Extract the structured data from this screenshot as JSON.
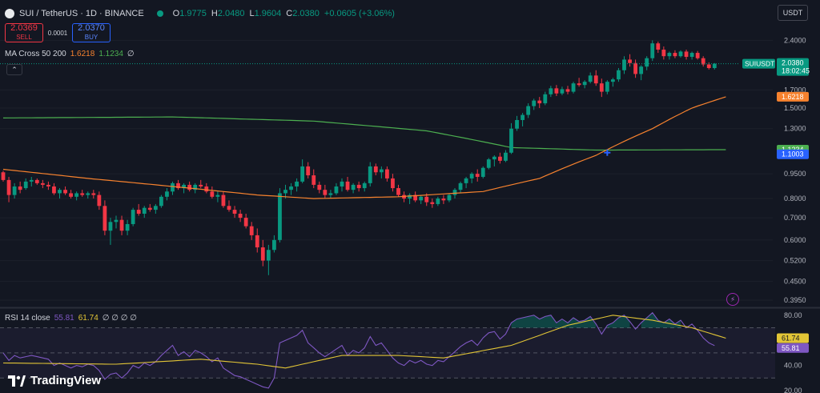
{
  "header": {
    "symbol_title": "SUI / TetherUS · 1D · BINANCE",
    "open_label": "O",
    "open": "1.9775",
    "high_label": "H",
    "high": "2.0480",
    "low_label": "L",
    "low": "1.9604",
    "close_label": "C",
    "close": "2.0380",
    "change": "+0.0605 (+3.06%)"
  },
  "trade": {
    "sell_price": "2.0369",
    "sell_label": "SELL",
    "spread": "0.0001",
    "buy_price": "2.0370",
    "buy_label": "BUY"
  },
  "ma_indicator": {
    "name": "MA Cross 50 200",
    "ma50": "1.6218",
    "ma200": "1.1234",
    "extra": "∅"
  },
  "rsi_indicator": {
    "name": "RSI 14 close",
    "rsi_value": "55.81",
    "rsi_ma": "61.74",
    "extra": "∅ ∅ ∅ ∅"
  },
  "currency_button": "USDT",
  "collapse_icon": "⌃",
  "alert_icon_glyph": "⚡",
  "logo_text": "TradingView",
  "price_scale": {
    "ticks": [
      "2.4000",
      "1.7000",
      "1.5000",
      "1.3000",
      "0.9500",
      "0.8000",
      "0.7000",
      "0.6000",
      "0.5200",
      "0.4500",
      "0.3950"
    ],
    "last_price_label": {
      "symbol": "SUIUSDT",
      "price": "2.0380",
      "countdown": "18:02:45"
    },
    "ma50_label": "1.6218",
    "ma200_label": "1.1234",
    "cross_label": "1.1003"
  },
  "rsi_scale": {
    "ticks": [
      "80.00",
      "40.00",
      "20.00"
    ],
    "rsi_ma_label": "61.74",
    "rsi_label": "55.81"
  },
  "colors": {
    "background": "#131722",
    "up": "#089981",
    "down": "#f23645",
    "ma50": "#f7822e",
    "ma200": "#4caf50",
    "rsi": "#7e57c2",
    "rsi_ma": "#e2c536",
    "cross": "#2962ff"
  },
  "chart_data": {
    "type": "candlestick",
    "symbol": "SUIUSDT",
    "interval": "1D",
    "exchange": "BINANCE",
    "y_scale": "log",
    "ylim": [
      0.38,
      2.6
    ],
    "candles": [
      [
        0.96,
        0.97,
        0.9,
        0.91
      ],
      [
        0.91,
        0.93,
        0.78,
        0.82
      ],
      [
        0.82,
        0.89,
        0.8,
        0.87
      ],
      [
        0.87,
        0.9,
        0.83,
        0.85
      ],
      [
        0.86,
        0.92,
        0.85,
        0.9
      ],
      [
        0.9,
        0.93,
        0.87,
        0.91
      ],
      [
        0.91,
        0.92,
        0.88,
        0.89
      ],
      [
        0.89,
        0.91,
        0.86,
        0.88
      ],
      [
        0.88,
        0.9,
        0.85,
        0.87
      ],
      [
        0.87,
        0.89,
        0.82,
        0.83
      ],
      [
        0.83,
        0.86,
        0.8,
        0.85
      ],
      [
        0.85,
        0.87,
        0.82,
        0.83
      ],
      [
        0.83,
        0.85,
        0.8,
        0.81
      ],
      [
        0.81,
        0.84,
        0.79,
        0.83
      ],
      [
        0.83,
        0.85,
        0.81,
        0.82
      ],
      [
        0.82,
        0.84,
        0.8,
        0.83
      ],
      [
        0.83,
        0.85,
        0.8,
        0.82
      ],
      [
        0.82,
        0.84,
        0.74,
        0.76
      ],
      [
        0.76,
        0.79,
        0.62,
        0.64
      ],
      [
        0.64,
        0.7,
        0.58,
        0.68
      ],
      [
        0.68,
        0.71,
        0.65,
        0.69
      ],
      [
        0.69,
        0.71,
        0.62,
        0.64
      ],
      [
        0.64,
        0.69,
        0.62,
        0.67
      ],
      [
        0.67,
        0.75,
        0.66,
        0.74
      ],
      [
        0.74,
        0.77,
        0.71,
        0.72
      ],
      [
        0.72,
        0.76,
        0.7,
        0.75
      ],
      [
        0.75,
        0.77,
        0.73,
        0.74
      ],
      [
        0.74,
        0.77,
        0.72,
        0.76
      ],
      [
        0.76,
        0.82,
        0.75,
        0.81
      ],
      [
        0.81,
        0.86,
        0.79,
        0.84
      ],
      [
        0.84,
        0.9,
        0.82,
        0.89
      ],
      [
        0.89,
        0.91,
        0.85,
        0.86
      ],
      [
        0.86,
        0.89,
        0.83,
        0.88
      ],
      [
        0.88,
        0.9,
        0.84,
        0.85
      ],
      [
        0.85,
        0.89,
        0.83,
        0.88
      ],
      [
        0.88,
        0.91,
        0.86,
        0.87
      ],
      [
        0.87,
        0.89,
        0.83,
        0.84
      ],
      [
        0.84,
        0.87,
        0.8,
        0.81
      ],
      [
        0.81,
        0.84,
        0.78,
        0.82
      ],
      [
        0.82,
        0.84,
        0.75,
        0.76
      ],
      [
        0.76,
        0.79,
        0.73,
        0.74
      ],
      [
        0.74,
        0.76,
        0.7,
        0.72
      ],
      [
        0.72,
        0.74,
        0.68,
        0.7
      ],
      [
        0.7,
        0.72,
        0.65,
        0.66
      ],
      [
        0.66,
        0.68,
        0.6,
        0.62
      ],
      [
        0.62,
        0.65,
        0.55,
        0.57
      ],
      [
        0.57,
        0.6,
        0.5,
        0.52
      ],
      [
        0.52,
        0.58,
        0.47,
        0.56
      ],
      [
        0.56,
        0.62,
        0.55,
        0.6
      ],
      [
        0.6,
        0.86,
        0.59,
        0.83
      ],
      [
        0.83,
        0.88,
        0.8,
        0.85
      ],
      [
        0.85,
        0.89,
        0.82,
        0.87
      ],
      [
        0.87,
        0.92,
        0.84,
        0.9
      ],
      [
        0.9,
        1.05,
        0.89,
        1.0
      ],
      [
        1.0,
        1.03,
        0.92,
        0.94
      ],
      [
        0.94,
        0.98,
        0.86,
        0.88
      ],
      [
        0.88,
        0.9,
        0.83,
        0.85
      ],
      [
        0.85,
        0.88,
        0.8,
        0.82
      ],
      [
        0.82,
        0.85,
        0.8,
        0.83
      ],
      [
        0.83,
        0.89,
        0.82,
        0.87
      ],
      [
        0.87,
        0.92,
        0.84,
        0.9
      ],
      [
        0.9,
        0.93,
        0.84,
        0.85
      ],
      [
        0.85,
        0.89,
        0.83,
        0.88
      ],
      [
        0.88,
        0.9,
        0.84,
        0.86
      ],
      [
        0.86,
        0.9,
        0.84,
        0.89
      ],
      [
        0.89,
        1.03,
        0.87,
        1.0
      ],
      [
        1.0,
        1.02,
        0.94,
        0.96
      ],
      [
        0.96,
        1.0,
        0.92,
        0.98
      ],
      [
        0.98,
        1.0,
        0.9,
        0.92
      ],
      [
        0.92,
        0.95,
        0.84,
        0.86
      ],
      [
        0.86,
        0.88,
        0.81,
        0.82
      ],
      [
        0.82,
        0.84,
        0.78,
        0.8
      ],
      [
        0.8,
        0.83,
        0.77,
        0.82
      ],
      [
        0.82,
        0.84,
        0.78,
        0.79
      ],
      [
        0.79,
        0.82,
        0.77,
        0.81
      ],
      [
        0.81,
        0.83,
        0.76,
        0.78
      ],
      [
        0.78,
        0.8,
        0.75,
        0.77
      ],
      [
        0.77,
        0.81,
        0.76,
        0.8
      ],
      [
        0.8,
        0.82,
        0.77,
        0.79
      ],
      [
        0.79,
        0.83,
        0.78,
        0.82
      ],
      [
        0.82,
        0.86,
        0.8,
        0.85
      ],
      [
        0.85,
        0.9,
        0.83,
        0.89
      ],
      [
        0.89,
        0.93,
        0.86,
        0.92
      ],
      [
        0.92,
        0.96,
        0.89,
        0.95
      ],
      [
        0.95,
        0.98,
        0.9,
        0.93
      ],
      [
        0.93,
        1.0,
        0.92,
        0.99
      ],
      [
        0.99,
        1.06,
        0.98,
        1.05
      ],
      [
        1.05,
        1.08,
        1.0,
        1.07
      ],
      [
        1.07,
        1.1,
        1.02,
        1.04
      ],
      [
        1.04,
        1.12,
        1.03,
        1.1
      ],
      [
        1.1,
        1.35,
        1.09,
        1.3
      ],
      [
        1.3,
        1.42,
        1.28,
        1.38
      ],
      [
        1.38,
        1.45,
        1.32,
        1.43
      ],
      [
        1.43,
        1.55,
        1.4,
        1.52
      ],
      [
        1.52,
        1.6,
        1.48,
        1.58
      ],
      [
        1.58,
        1.62,
        1.5,
        1.55
      ],
      [
        1.55,
        1.68,
        1.53,
        1.65
      ],
      [
        1.65,
        1.75,
        1.62,
        1.72
      ],
      [
        1.72,
        1.76,
        1.63,
        1.66
      ],
      [
        1.66,
        1.74,
        1.64,
        1.71
      ],
      [
        1.71,
        1.75,
        1.65,
        1.68
      ],
      [
        1.68,
        1.8,
        1.66,
        1.78
      ],
      [
        1.78,
        1.85,
        1.74,
        1.76
      ],
      [
        1.76,
        1.82,
        1.72,
        1.8
      ],
      [
        1.8,
        1.92,
        1.78,
        1.88
      ],
      [
        1.88,
        1.95,
        1.75,
        1.78
      ],
      [
        1.78,
        1.84,
        1.62,
        1.68
      ],
      [
        1.68,
        1.82,
        1.65,
        1.8
      ],
      [
        1.8,
        1.85,
        1.74,
        1.83
      ],
      [
        1.83,
        1.98,
        1.8,
        1.95
      ],
      [
        1.95,
        2.15,
        1.9,
        2.1
      ],
      [
        2.1,
        2.18,
        2.0,
        2.05
      ],
      [
        2.05,
        2.1,
        1.85,
        1.9
      ],
      [
        1.9,
        2.02,
        1.82,
        2.0
      ],
      [
        2.0,
        2.15,
        1.95,
        2.12
      ],
      [
        2.12,
        2.4,
        2.08,
        2.35
      ],
      [
        2.35,
        2.38,
        2.2,
        2.25
      ],
      [
        2.25,
        2.3,
        2.1,
        2.15
      ],
      [
        2.15,
        2.22,
        2.1,
        2.2
      ],
      [
        2.2,
        2.24,
        2.12,
        2.15
      ],
      [
        2.15,
        2.24,
        2.13,
        2.22
      ],
      [
        2.22,
        2.25,
        2.1,
        2.14
      ],
      [
        2.14,
        2.22,
        2.1,
        2.2
      ],
      [
        2.2,
        2.23,
        2.1,
        2.12
      ],
      [
        2.12,
        2.15,
        2.0,
        2.03
      ],
      [
        2.03,
        2.06,
        1.96,
        1.98
      ],
      [
        1.98,
        2.05,
        1.96,
        2.04
      ]
    ],
    "ma50": {
      "name": "MA 50",
      "last_value": 1.6218,
      "points": [
        [
          0,
          0.98
        ],
        [
          15,
          0.92
        ],
        [
          30,
          0.87
        ],
        [
          45,
          0.82
        ],
        [
          55,
          0.8
        ],
        [
          70,
          0.81
        ],
        [
          85,
          0.84
        ],
        [
          95,
          0.92
        ],
        [
          105,
          1.08
        ],
        [
          115,
          1.3
        ],
        [
          122,
          1.5
        ],
        [
          128,
          1.6218
        ]
      ]
    },
    "ma200": {
      "name": "MA 200",
      "last_value": 1.1234,
      "points": [
        [
          0,
          1.4
        ],
        [
          30,
          1.41
        ],
        [
          55,
          1.37
        ],
        [
          75,
          1.28
        ],
        [
          90,
          1.14
        ],
        [
          105,
          1.12
        ],
        [
          128,
          1.1234
        ]
      ]
    },
    "cross_marker": {
      "value": 1.1003
    },
    "rsi": {
      "name": "RSI 14",
      "ylim": [
        20,
        85
      ],
      "upper_band": 70,
      "lower_band": 30,
      "ticks": [
        80,
        40,
        20
      ],
      "values": [
        50,
        44,
        48,
        46,
        47,
        48,
        47,
        46,
        45,
        40,
        42,
        40,
        38,
        40,
        39,
        41,
        40,
        36,
        29,
        33,
        34,
        30,
        34,
        40,
        38,
        42,
        40,
        43,
        48,
        52,
        56,
        48,
        51,
        47,
        52,
        50,
        47,
        43,
        46,
        38,
        35,
        32,
        31,
        29,
        27,
        25,
        23,
        22,
        30,
        58,
        60,
        62,
        64,
        68,
        58,
        54,
        50,
        47,
        50,
        53,
        56,
        48,
        52,
        50,
        54,
        63,
        56,
        58,
        52,
        46,
        42,
        40,
        44,
        42,
        44,
        41,
        40,
        44,
        43,
        47,
        51,
        55,
        58,
        60,
        56,
        62,
        66,
        67,
        61,
        65,
        74,
        77,
        78,
        79,
        80,
        77,
        79,
        80,
        74,
        77,
        74,
        78,
        75,
        76,
        79,
        73,
        65,
        72,
        74,
        78,
        80,
        75,
        69,
        74,
        78,
        82,
        76,
        74,
        77,
        73,
        76,
        70,
        73,
        68,
        62,
        58,
        55.81
      ],
      "ma": {
        "name": "RSI MA",
        "last_value": 61.74,
        "points": [
          [
            0,
            42
          ],
          [
            20,
            41
          ],
          [
            35,
            45
          ],
          [
            45,
            41
          ],
          [
            50,
            38
          ],
          [
            60,
            48
          ],
          [
            70,
            48
          ],
          [
            78,
            46
          ],
          [
            90,
            56
          ],
          [
            100,
            72
          ],
          [
            108,
            80
          ],
          [
            115,
            76
          ],
          [
            122,
            70
          ],
          [
            128,
            61.74
          ]
        ]
      }
    }
  }
}
